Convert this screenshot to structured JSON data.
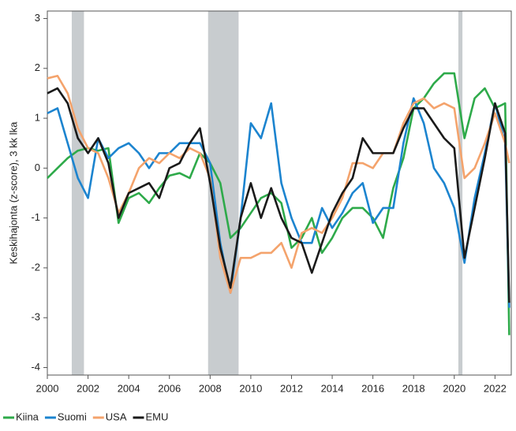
{
  "chart_data": {
    "type": "line",
    "y_label": "Keskihajonta (z-score), 3 kk lka",
    "x": [
      2000,
      2000.5,
      2001,
      2001.5,
      2002,
      2002.5,
      2003,
      2003.5,
      2004,
      2004.5,
      2005,
      2005.5,
      2006,
      2006.5,
      2007,
      2007.5,
      2008,
      2008.5,
      2009,
      2009.5,
      2010,
      2010.5,
      2011,
      2011.5,
      2012,
      2012.5,
      2013,
      2013.5,
      2014,
      2014.5,
      2015,
      2015.5,
      2016,
      2016.5,
      2017,
      2017.5,
      2018,
      2018.5,
      2019,
      2019.5,
      2020,
      2020.5,
      2021,
      2021.5,
      2022,
      2022.5,
      2022.7
    ],
    "series": [
      {
        "name": "Kiina",
        "color": "#2eaa4a",
        "values": [
          -0.2,
          0.0,
          0.2,
          0.35,
          0.4,
          0.35,
          0.4,
          -1.1,
          -0.6,
          -0.5,
          -0.7,
          -0.4,
          -0.15,
          -0.1,
          -0.2,
          0.3,
          0.1,
          -0.3,
          -1.4,
          -1.2,
          -0.9,
          -0.6,
          -0.5,
          -0.7,
          -1.6,
          -1.4,
          -1.0,
          -1.7,
          -1.4,
          -1.0,
          -0.8,
          -0.8,
          -1.0,
          -1.4,
          -0.4,
          0.2,
          1.2,
          1.4,
          1.7,
          1.9,
          1.9,
          0.6,
          1.4,
          1.6,
          1.2,
          1.3,
          -3.35
        ]
      },
      {
        "name": "Suomi",
        "color": "#1c84cf",
        "values": [
          1.1,
          1.2,
          0.5,
          -0.2,
          -0.6,
          0.6,
          0.2,
          0.4,
          0.5,
          0.3,
          0.0,
          0.3,
          0.3,
          0.5,
          0.5,
          0.5,
          0.1,
          -1.5,
          -2.5,
          -1.0,
          0.9,
          0.6,
          1.3,
          -0.3,
          -1.0,
          -1.5,
          -1.5,
          -0.8,
          -1.2,
          -0.9,
          -0.5,
          -0.3,
          -1.1,
          -0.8,
          -0.8,
          0.5,
          1.4,
          0.9,
          0.0,
          -0.3,
          -0.8,
          -1.9,
          -0.6,
          0.3,
          1.3,
          0.5,
          -2.8
        ]
      },
      {
        "name": "USA",
        "color": "#f4a36c",
        "values": [
          1.8,
          1.85,
          1.5,
          0.8,
          0.4,
          0.3,
          -0.2,
          -0.9,
          -0.5,
          0.0,
          0.2,
          0.1,
          0.3,
          0.2,
          0.4,
          0.3,
          -0.2,
          -1.8,
          -2.5,
          -1.8,
          -1.8,
          -1.7,
          -1.7,
          -1.5,
          -2.0,
          -1.3,
          -1.2,
          -1.3,
          -1.0,
          -0.6,
          0.1,
          0.1,
          0.0,
          0.3,
          0.3,
          0.9,
          1.3,
          1.4,
          1.2,
          1.3,
          1.2,
          -0.2,
          0.0,
          0.5,
          1.1,
          0.5,
          0.1
        ]
      },
      {
        "name": "EMU",
        "color": "#1a1a1a",
        "values": [
          1.5,
          1.6,
          1.3,
          0.6,
          0.3,
          0.6,
          0.1,
          -1.0,
          -0.5,
          -0.4,
          -0.3,
          -0.6,
          0.0,
          0.1,
          0.5,
          0.8,
          -0.3,
          -1.6,
          -2.4,
          -1.0,
          -0.3,
          -1.0,
          -0.4,
          -1.0,
          -1.4,
          -1.5,
          -2.1,
          -1.5,
          -0.9,
          -0.5,
          -0.2,
          0.6,
          0.3,
          0.3,
          0.3,
          0.8,
          1.2,
          1.2,
          0.9,
          0.6,
          0.4,
          -1.8,
          -0.8,
          0.2,
          1.3,
          0.7,
          -2.7
        ]
      }
    ],
    "shaded_periods": [
      [
        2001.2,
        2001.8
      ],
      [
        2007.9,
        2009.4
      ],
      [
        2020.2,
        2020.4
      ]
    ],
    "xlim": [
      2000,
      2022.8
    ],
    "xticks": [
      2000,
      2002,
      2004,
      2006,
      2008,
      2010,
      2012,
      2014,
      2016,
      2018,
      2020,
      2022
    ],
    "ylim": [
      -4.15,
      3.15
    ],
    "yticks": [
      -4,
      -3,
      -2,
      -1,
      0,
      1,
      2,
      3
    ],
    "legend": "bottom"
  }
}
